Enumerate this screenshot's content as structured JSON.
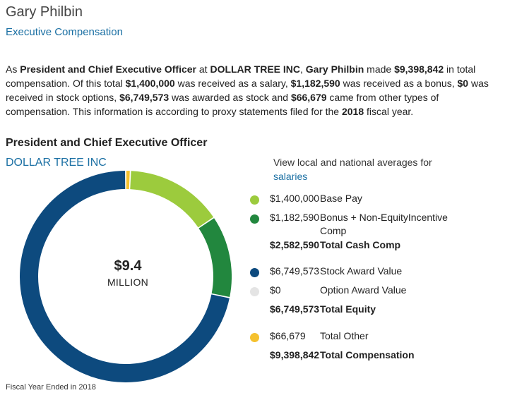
{
  "header": {
    "name": "Gary Philbin",
    "subtitle": "Executive Compensation"
  },
  "description": {
    "p1": "As ",
    "title": "President and Chief Executive Officer",
    "p2": " at ",
    "company": "DOLLAR TREE INC",
    "p3": ", ",
    "name": "Gary Philbin",
    "p4": " made ",
    "total": "$9,398,842",
    "p5": " in total compensation. Of this total ",
    "salary": "$1,400,000",
    "p6": " was received as a salary, ",
    "bonus": "$1,182,590",
    "p7": " was received as a bonus, ",
    "options": "$0",
    "p8": " was received in stock options, ",
    "stock": "$6,749,573",
    "p9": " was awarded as stock and ",
    "other": "$66,679",
    "p10": " came from other types of compensation. This information is according to proxy statements filed for the ",
    "year": "2018",
    "p11": " fiscal year."
  },
  "section": {
    "title": "President and Chief Executive Officer",
    "company": "DOLLAR TREE INC"
  },
  "averages": {
    "text": "View local and national averages for",
    "link": "salaries"
  },
  "center": {
    "value": "$9.4",
    "unit": "MILLION"
  },
  "legend": {
    "base_pay": {
      "value": "$1,400,000",
      "label": "Base Pay",
      "color": "#9ccb3d"
    },
    "bonus": {
      "value": "$1,182,590",
      "label_line1": "Bonus + Non-EquityIncentive",
      "label_line2": "Comp",
      "color": "#22873e"
    },
    "total_cash": {
      "value": "$2,582,590",
      "label": "Total Cash Comp"
    },
    "stock": {
      "value": "$6,749,573",
      "label": "Stock Award Value",
      "color": "#0d4a7e"
    },
    "option": {
      "value": "$0",
      "label": "Option Award Value",
      "color": "#e4e4e4"
    },
    "total_equity": {
      "value": "$6,749,573",
      "label": "Total Equity"
    },
    "other": {
      "value": "$66,679",
      "label": "Total Other",
      "color": "#f5c12e"
    },
    "total_comp": {
      "value": "$9,398,842",
      "label": "Total Compensation"
    }
  },
  "chart_data": {
    "type": "pie",
    "style": "donut",
    "categories": [
      "Total Other",
      "Base Pay",
      "Bonus + Non-Equity Incentive Comp",
      "Stock Award Value",
      "Option Award Value"
    ],
    "values": [
      66679,
      1400000,
      1182590,
      6749573,
      0
    ],
    "colors": [
      "#f5c12e",
      "#9ccb3d",
      "#22873e",
      "#0d4a7e",
      "#e4e4e4"
    ],
    "total": 9398842,
    "center_label": "$9.4 MILLION"
  },
  "footer": {
    "text": "Fiscal Year Ended in 2018"
  }
}
